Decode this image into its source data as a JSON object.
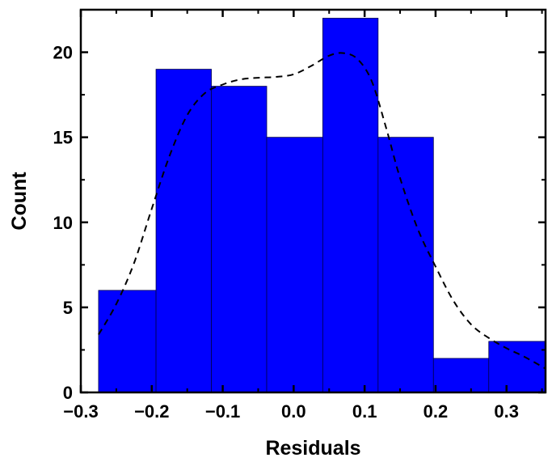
{
  "chart_data": {
    "type": "bar",
    "title": "",
    "xlabel": "Residuals",
    "ylabel": "Count",
    "xlim": [
      -0.3,
      0.355
    ],
    "ylim": [
      0,
      22.5
    ],
    "xticks": [
      -0.3,
      -0.2,
      -0.1,
      0.0,
      0.1,
      0.2,
      0.3
    ],
    "xtick_labels": [
      "−0.3",
      "−0.2",
      "−0.1",
      "0.0",
      "0.1",
      "0.2",
      "0.3"
    ],
    "yticks": [
      0,
      5,
      10,
      15,
      20
    ],
    "ytick_labels": [
      "0",
      "5",
      "10",
      "15",
      "20"
    ],
    "grid": false,
    "bar_color": "#0000FF",
    "bins": [
      {
        "x0": -0.275,
        "x1": -0.194,
        "count": 6
      },
      {
        "x0": -0.194,
        "x1": -0.116,
        "count": 19
      },
      {
        "x0": -0.116,
        "x1": -0.038,
        "count": 18
      },
      {
        "x0": -0.038,
        "x1": 0.041,
        "count": 15
      },
      {
        "x0": 0.041,
        "x1": 0.119,
        "count": 22
      },
      {
        "x0": 0.119,
        "x1": 0.197,
        "count": 15
      },
      {
        "x0": 0.197,
        "x1": 0.275,
        "count": 2
      },
      {
        "x0": 0.275,
        "x1": 0.355,
        "count": 3
      }
    ],
    "fit_curve": {
      "style": "dashed",
      "color": "#000000",
      "points": [
        [
          -0.275,
          3.4
        ],
        [
          -0.25,
          5.2
        ],
        [
          -0.225,
          7.6
        ],
        [
          -0.2,
          10.8
        ],
        [
          -0.175,
          13.9
        ],
        [
          -0.15,
          16.3
        ],
        [
          -0.125,
          17.6
        ],
        [
          -0.1,
          18.1
        ],
        [
          -0.075,
          18.4
        ],
        [
          -0.05,
          18.5
        ],
        [
          -0.025,
          18.55
        ],
        [
          0.0,
          18.7
        ],
        [
          0.025,
          19.2
        ],
        [
          0.05,
          19.8
        ],
        [
          0.07,
          19.95
        ],
        [
          0.09,
          19.6
        ],
        [
          0.11,
          18.3
        ],
        [
          0.13,
          15.6
        ],
        [
          0.15,
          12.6
        ],
        [
          0.175,
          9.6
        ],
        [
          0.2,
          7.4
        ],
        [
          0.225,
          5.4
        ],
        [
          0.25,
          4.0
        ],
        [
          0.275,
          3.2
        ],
        [
          0.3,
          2.6
        ],
        [
          0.325,
          2.1
        ],
        [
          0.355,
          1.4
        ]
      ]
    }
  }
}
